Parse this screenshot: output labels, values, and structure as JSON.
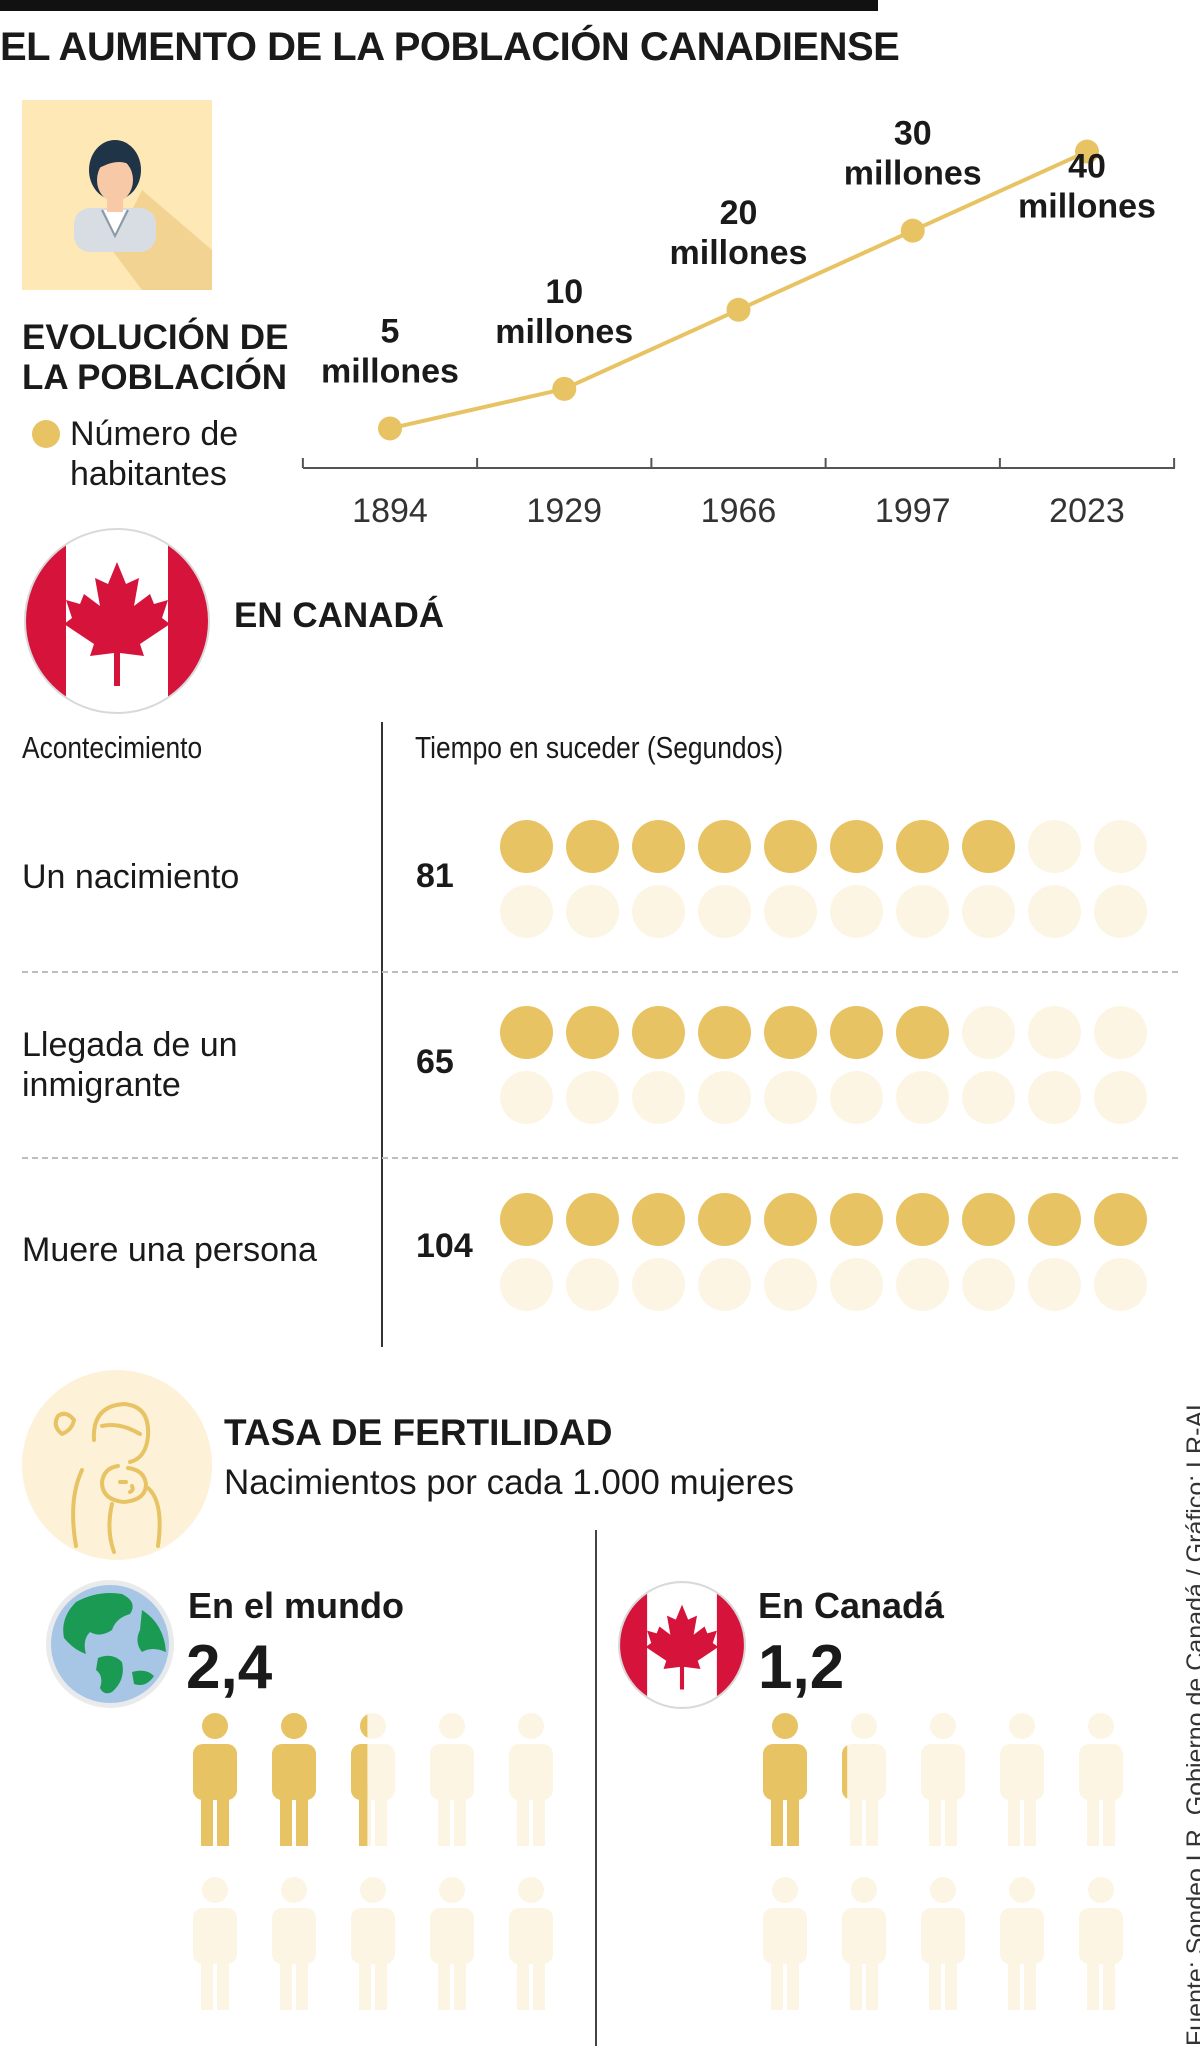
{
  "title": "EL AUMENTO DE LA POBLACIÓN CANADIENSE",
  "evolution": {
    "title": "EVOLUCIÓN DE LA POBLACIÓN",
    "legend": "Número de habitantes",
    "icon": "person-icon"
  },
  "chart_data": [
    {
      "type": "line",
      "title": "EVOLUCIÓN DE LA POBLACIÓN",
      "series_name": "Número de habitantes",
      "categories": [
        "1894",
        "1929",
        "1966",
        "1997",
        "2023"
      ],
      "values": [
        5,
        10,
        20,
        30,
        40
      ],
      "units": "millones",
      "labels": [
        {
          "number": "5",
          "unit": "millones"
        },
        {
          "number": "10",
          "unit": "millones"
        },
        {
          "number": "20",
          "unit": "millones"
        },
        {
          "number": "30",
          "unit": "millones"
        },
        {
          "number": "40",
          "unit": "millones"
        }
      ],
      "ylim": [
        0,
        45
      ],
      "color": "#e8c363"
    },
    {
      "type": "table",
      "title": "EN CANADÁ",
      "columns": [
        "Acontecimiento",
        "Tiempo en suceder (Segundos)"
      ],
      "rows": [
        {
          "label": "Un nacimiento",
          "value": 81
        },
        {
          "label": "Llegada de un inmigrante",
          "value": 65
        },
        {
          "label": "Muere una persona",
          "value": 104
        }
      ],
      "dots_per_row": 20,
      "seconds_per_dot": 10
    },
    {
      "type": "bar",
      "title": "TASA DE FERTILIDAD",
      "subtitle": "Nacimientos por cada 1.000 mujeres",
      "categories": [
        "En el mundo",
        "En Canadá"
      ],
      "values": [
        2.4,
        1.2
      ],
      "value_labels": [
        "2,4",
        "1,2"
      ],
      "icons_per_panel": 10
    }
  ],
  "canada": {
    "title": "EN CANADÁ",
    "icon": "canada-flag-icon"
  },
  "fertility": {
    "title": "TASA DE FERTILIDAD",
    "subtitle": "Nacimientos por cada 1.000 mujeres",
    "world": {
      "label": "En el mundo",
      "value": "2,4",
      "icon": "globe-icon"
    },
    "canada": {
      "label": "En Canadá",
      "value": "1,2",
      "icon": "canada-flag-icon"
    }
  },
  "source": "Fuente: Sondeo LR, Gobierno de Canadá / Gráfico: LR-AL",
  "colors": {
    "accent": "#e8c363",
    "light": "#fdf5e4",
    "flag_red": "#d6143b",
    "globe_green": "#1a9a52",
    "globe_blue": "#a7c6e6"
  }
}
